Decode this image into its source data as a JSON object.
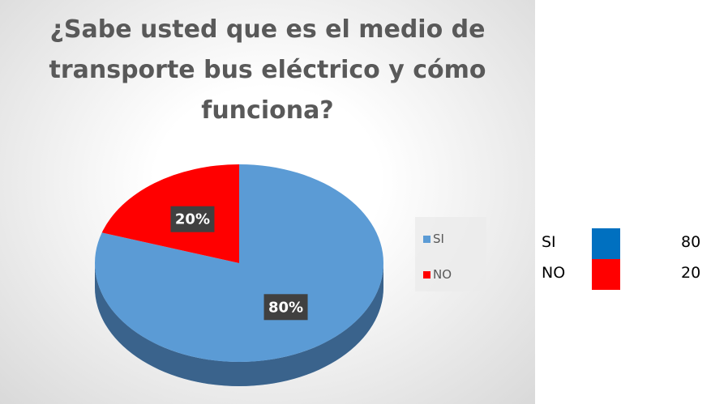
{
  "chart_data": {
    "type": "pie",
    "title": "¿Sabe usted que es el medio de transporte bus eléctrico y cómo funciona?",
    "categories": [
      "SI",
      "NO"
    ],
    "values": [
      80,
      20
    ],
    "value_labels": [
      "80%",
      "20%"
    ],
    "colors": [
      "#5b9bd5",
      "#ff0000"
    ],
    "legend": "right"
  },
  "table": {
    "rows": [
      {
        "label": "SI",
        "color": "#0070c0",
        "value": 80
      },
      {
        "label": "NO",
        "color": "#ff0000",
        "value": 20
      }
    ]
  }
}
